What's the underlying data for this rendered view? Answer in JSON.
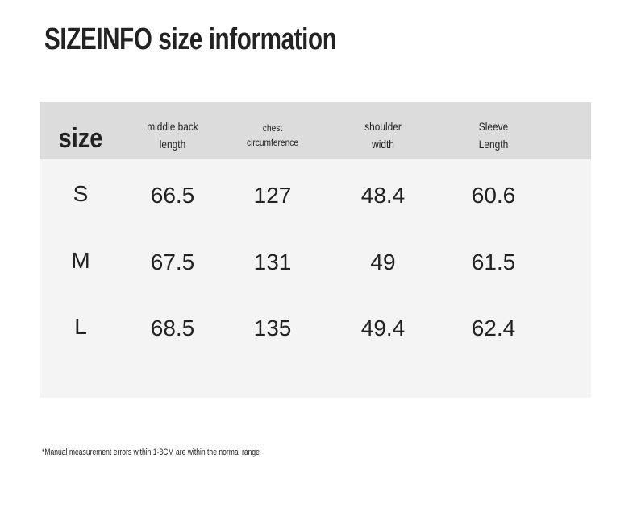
{
  "title": "SIZEINFO size information",
  "table": {
    "headers": [
      [
        "size"
      ],
      [
        "middle back",
        "length"
      ],
      [
        "chest",
        "circumference"
      ],
      [
        "shoulder",
        "width"
      ],
      [
        "Sleeve",
        "Length"
      ]
    ],
    "rows": [
      [
        "S",
        66.5,
        127,
        48.4,
        60.6
      ],
      [
        "M",
        67.5,
        131,
        49,
        61.5
      ],
      [
        "L",
        68.5,
        135,
        49.4,
        62.4
      ]
    ]
  },
  "footnote": "*Manual measurement errors within 1-3CM are within the normal range"
}
